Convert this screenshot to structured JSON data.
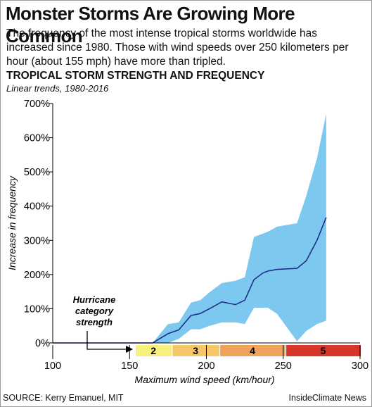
{
  "title": "Monster Storms Are Growing More Common",
  "subtitle": "The frequency of the most intense tropical storms worldwide has increased since 1980. Those with wind speeds over 250 kilometers per hour (about 155 mph) have more than tripled.",
  "chart_title": "TROPICAL STORM STRENGTH AND FREQUENCY",
  "chart_subtitle": "Linear trends, 1980-2016",
  "source": "SOURCE: Kerry Emanuel, MIT",
  "credit": "InsideClimate News",
  "colors": {
    "band": "#7dc8ee",
    "line": "#1f2d8c",
    "axis": "#000000",
    "cat2": "#f7f07c",
    "cat3": "#f6c766",
    "cat4": "#f0a15a",
    "cat5": "#d9362b"
  },
  "chart_data": {
    "type": "line",
    "xlabel": "Maximum wind speed (km/hour)",
    "ylabel": "Increase in frequency",
    "xlim": [
      100,
      300
    ],
    "ylim": [
      0,
      700
    ],
    "x_ticks": [
      "100",
      "150",
      "200",
      "250",
      "300"
    ],
    "y_ticks": [
      "0%",
      "100%",
      "200%",
      "300%",
      "400%",
      "500%",
      "600%",
      "700%"
    ],
    "series": [
      {
        "role": "trend",
        "x": [
          100,
          165,
          175,
          182,
          190,
          196,
          202,
          210,
          219,
          225,
          231,
          237,
          240,
          246,
          259,
          265,
          272,
          278
        ],
        "y": [
          0,
          0,
          27,
          38,
          80,
          86,
          100,
          120,
          112,
          125,
          185,
          205,
          210,
          215,
          218,
          240,
          300,
          367
        ]
      },
      {
        "role": "uncertainty-upper",
        "x": [
          165,
          175,
          182,
          190,
          196,
          202,
          210,
          219,
          225,
          231,
          237,
          240,
          246,
          259,
          265,
          272,
          278
        ],
        "y": [
          0,
          55,
          60,
          118,
          125,
          148,
          175,
          182,
          192,
          310,
          320,
          325,
          340,
          350,
          430,
          540,
          670
        ]
      },
      {
        "role": "uncertainty-lower",
        "x": [
          165,
          175,
          182,
          190,
          196,
          202,
          210,
          219,
          225,
          231,
          237,
          240,
          246,
          259,
          265,
          272,
          278
        ],
        "y": [
          0,
          0,
          12,
          40,
          40,
          50,
          60,
          60,
          55,
          103,
          103,
          103,
          85,
          5,
          35,
          55,
          65
        ]
      }
    ],
    "hurricane_categories": {
      "label": "Hurricane category strength",
      "items": [
        {
          "name": "2",
          "from": 154,
          "to": 177
        },
        {
          "name": "3",
          "from": 178,
          "to": 208
        },
        {
          "name": "4",
          "from": 209,
          "to": 251
        },
        {
          "name": "5",
          "from": 252,
          "to": 300
        }
      ]
    }
  }
}
